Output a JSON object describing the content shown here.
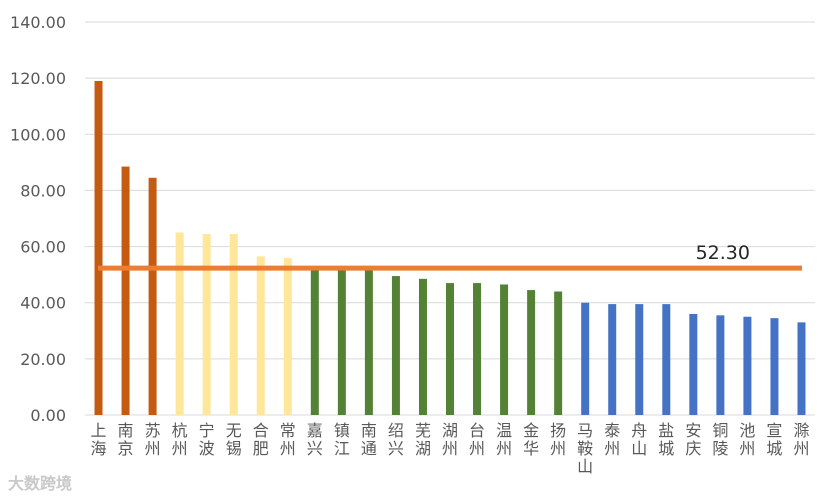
{
  "chart_data": {
    "type": "bar",
    "categories": [
      "上海",
      "南京",
      "苏州",
      "杭州",
      "宁波",
      "无锡",
      "合肥",
      "常州",
      "嘉兴",
      "镇江",
      "南通",
      "绍兴",
      "芜湖",
      "湖州",
      "台州",
      "温州",
      "金华",
      "扬州",
      "马鞍山",
      "泰州",
      "舟山",
      "盐城",
      "安庆",
      "铜陵",
      "池州",
      "宣城",
      "滁州"
    ],
    "values": [
      119,
      88.5,
      84.5,
      65,
      64.5,
      64.5,
      56.5,
      56,
      52,
      52,
      52,
      49.5,
      48.5,
      47,
      47,
      46.5,
      44.5,
      44,
      40,
      39.5,
      39.5,
      39.5,
      36,
      35.5,
      35,
      34.5,
      33
    ],
    "bar_colors": [
      "#c55a11",
      "#c55a11",
      "#c55a11",
      "#ffe699",
      "#ffe699",
      "#ffe699",
      "#ffe699",
      "#ffe699",
      "#548235",
      "#548235",
      "#548235",
      "#548235",
      "#548235",
      "#548235",
      "#548235",
      "#548235",
      "#548235",
      "#548235",
      "#4472c4",
      "#4472c4",
      "#4472c4",
      "#4472c4",
      "#4472c4",
      "#4472c4",
      "#4472c4",
      "#4472c4",
      "#4472c4"
    ],
    "yticks": [
      "0.00",
      "20.00",
      "40.00",
      "60.00",
      "80.00",
      "100.00",
      "120.00",
      "140.00"
    ],
    "ylim": [
      0,
      140
    ],
    "grid": true,
    "reference_line": {
      "value": 52.3,
      "label": "52.30",
      "color": "#ed7d31"
    },
    "title": "",
    "xlabel": "",
    "ylabel": ""
  },
  "watermark": {
    "text": "大数跨境"
  }
}
